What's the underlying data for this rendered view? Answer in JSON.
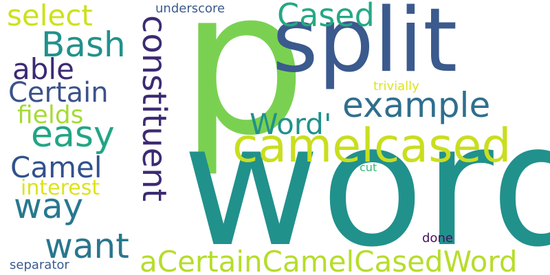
{
  "words": [
    {
      "text": "p",
      "color": "#7ad151"
    },
    {
      "text": "word",
      "color": "#21918c"
    },
    {
      "text": "split",
      "color": "#3b5a8d"
    },
    {
      "text": "camelcased",
      "color": "#c9de1f"
    },
    {
      "text": "constituent",
      "color": "#3c2a73"
    },
    {
      "text": "example",
      "color": "#2f6f8e"
    },
    {
      "text": "aCertainCamelCasedWord",
      "color": "#b6dd2a"
    },
    {
      "text": "Cased",
      "color": "#25a884"
    },
    {
      "text": "Word'",
      "color": "#21918c"
    },
    {
      "text": "Bash",
      "color": "#21918c"
    },
    {
      "text": "select",
      "color": "#cee11a"
    },
    {
      "text": "able",
      "color": "#3c2a73"
    },
    {
      "text": "Certain",
      "color": "#3b528b"
    },
    {
      "text": "fields",
      "color": "#a6db34"
    },
    {
      "text": "easy",
      "color": "#22a584"
    },
    {
      "text": "Camel",
      "color": "#31528c"
    },
    {
      "text": "interest",
      "color": "#dde31b"
    },
    {
      "text": "way",
      "color": "#28788e"
    },
    {
      "text": "want",
      "color": "#2a768e"
    },
    {
      "text": "underscore",
      "color": "#3b5a8d"
    },
    {
      "text": "trivially",
      "color": "#dde31b"
    },
    {
      "text": "cut",
      "color": "#35b779"
    },
    {
      "text": "done",
      "color": "#46105f"
    },
    {
      "text": "separator",
      "color": "#3b5a8d"
    }
  ]
}
